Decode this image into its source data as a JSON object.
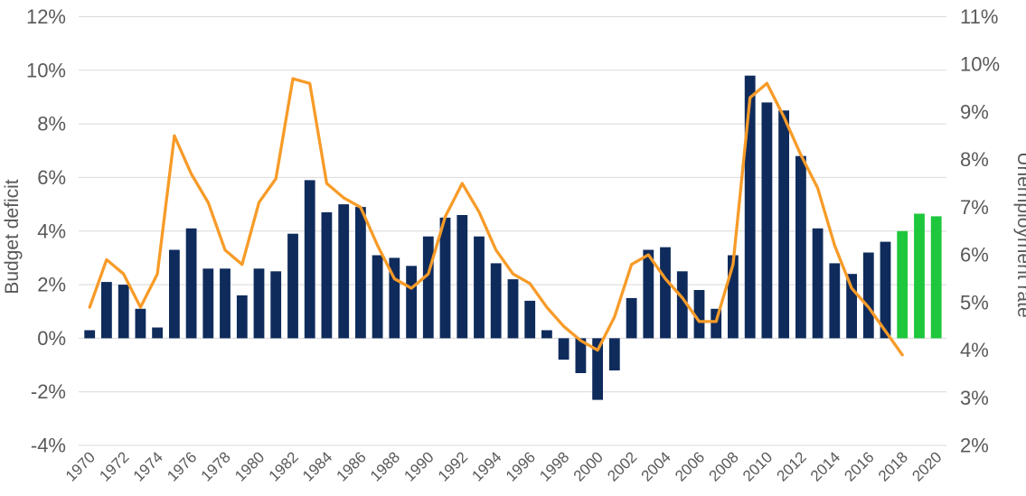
{
  "chart_data": {
    "type": "bar",
    "subtype": "combo-bar-line-dual-axis",
    "title": "",
    "legend": "none",
    "grid": "horizontal",
    "x": [
      1970,
      1971,
      1972,
      1973,
      1974,
      1975,
      1976,
      1977,
      1978,
      1979,
      1980,
      1981,
      1982,
      1983,
      1984,
      1985,
      1986,
      1987,
      1988,
      1989,
      1990,
      1991,
      1992,
      1993,
      1994,
      1995,
      1996,
      1997,
      1998,
      1999,
      2000,
      2001,
      2002,
      2003,
      2004,
      2005,
      2006,
      2007,
      2008,
      2009,
      2010,
      2011,
      2012,
      2013,
      2014,
      2015,
      2016,
      2017,
      2018,
      2019,
      2020
    ],
    "x_tick_labels": [
      "1970",
      "1972",
      "1974",
      "1976",
      "1978",
      "1980",
      "1982",
      "1984",
      "1986",
      "1988",
      "1990",
      "1992",
      "1994",
      "1996",
      "1998",
      "2000",
      "2002",
      "2004",
      "2006",
      "2008",
      "2010",
      "2012",
      "2014",
      "2016",
      "2018",
      "2020"
    ],
    "left_axis": {
      "label": "Budget deficit",
      "range": [
        -4,
        12
      ],
      "tick_values": [
        12,
        10,
        8,
        6,
        4,
        2,
        0,
        -2,
        -4
      ],
      "tick_labels": [
        "12%",
        "10%",
        "8%",
        "6%",
        "4%",
        "2%",
        "0%",
        "-2%",
        "-4%"
      ]
    },
    "right_axis": {
      "label": "Unemployment rate",
      "range": [
        2,
        11
      ],
      "tick_values": [
        11,
        10,
        9,
        8,
        7,
        6,
        5,
        4,
        3,
        2
      ],
      "tick_labels": [
        "11%",
        "10%",
        "9%",
        "8%",
        "7%",
        "6%",
        "5%",
        "4%",
        "3%",
        "2%"
      ]
    },
    "series": [
      {
        "name": "Budget deficit",
        "type": "bar",
        "axis": "left",
        "color": "#0f2b5c",
        "forecast_color": "#1ec73c",
        "forecast_start_year": 2018,
        "values": [
          0.3,
          2.1,
          2.0,
          1.1,
          0.4,
          3.3,
          4.1,
          2.6,
          2.6,
          1.6,
          2.6,
          2.5,
          3.9,
          5.9,
          4.7,
          5.0,
          4.9,
          3.1,
          3.0,
          2.7,
          3.8,
          4.5,
          4.6,
          3.8,
          2.8,
          2.2,
          1.4,
          0.3,
          -0.8,
          -1.3,
          -2.3,
          -1.2,
          1.5,
          3.3,
          3.4,
          2.5,
          1.8,
          1.1,
          3.1,
          9.8,
          8.8,
          8.5,
          6.8,
          4.1,
          2.8,
          2.4,
          3.2,
          3.6,
          4.0,
          4.65,
          4.55
        ]
      },
      {
        "name": "Unemployment rate",
        "type": "line",
        "axis": "right",
        "color": "#f79b28",
        "values": [
          4.9,
          5.9,
          5.6,
          4.9,
          5.6,
          8.5,
          7.7,
          7.1,
          6.1,
          5.8,
          7.1,
          7.6,
          9.7,
          9.6,
          7.5,
          7.2,
          7.0,
          6.2,
          5.5,
          5.3,
          5.6,
          6.8,
          7.5,
          6.9,
          6.1,
          5.6,
          5.4,
          4.9,
          4.5,
          4.2,
          4.0,
          4.7,
          5.8,
          6.0,
          5.5,
          5.1,
          4.6,
          4.6,
          5.8,
          9.3,
          9.6,
          8.9,
          8.1,
          7.4,
          6.2,
          5.3,
          4.9,
          4.4,
          3.9,
          null,
          null
        ]
      }
    ],
    "colors": {
      "background": "#ffffff",
      "grid": "#d9d9d9",
      "axis_text": "#595959"
    }
  }
}
